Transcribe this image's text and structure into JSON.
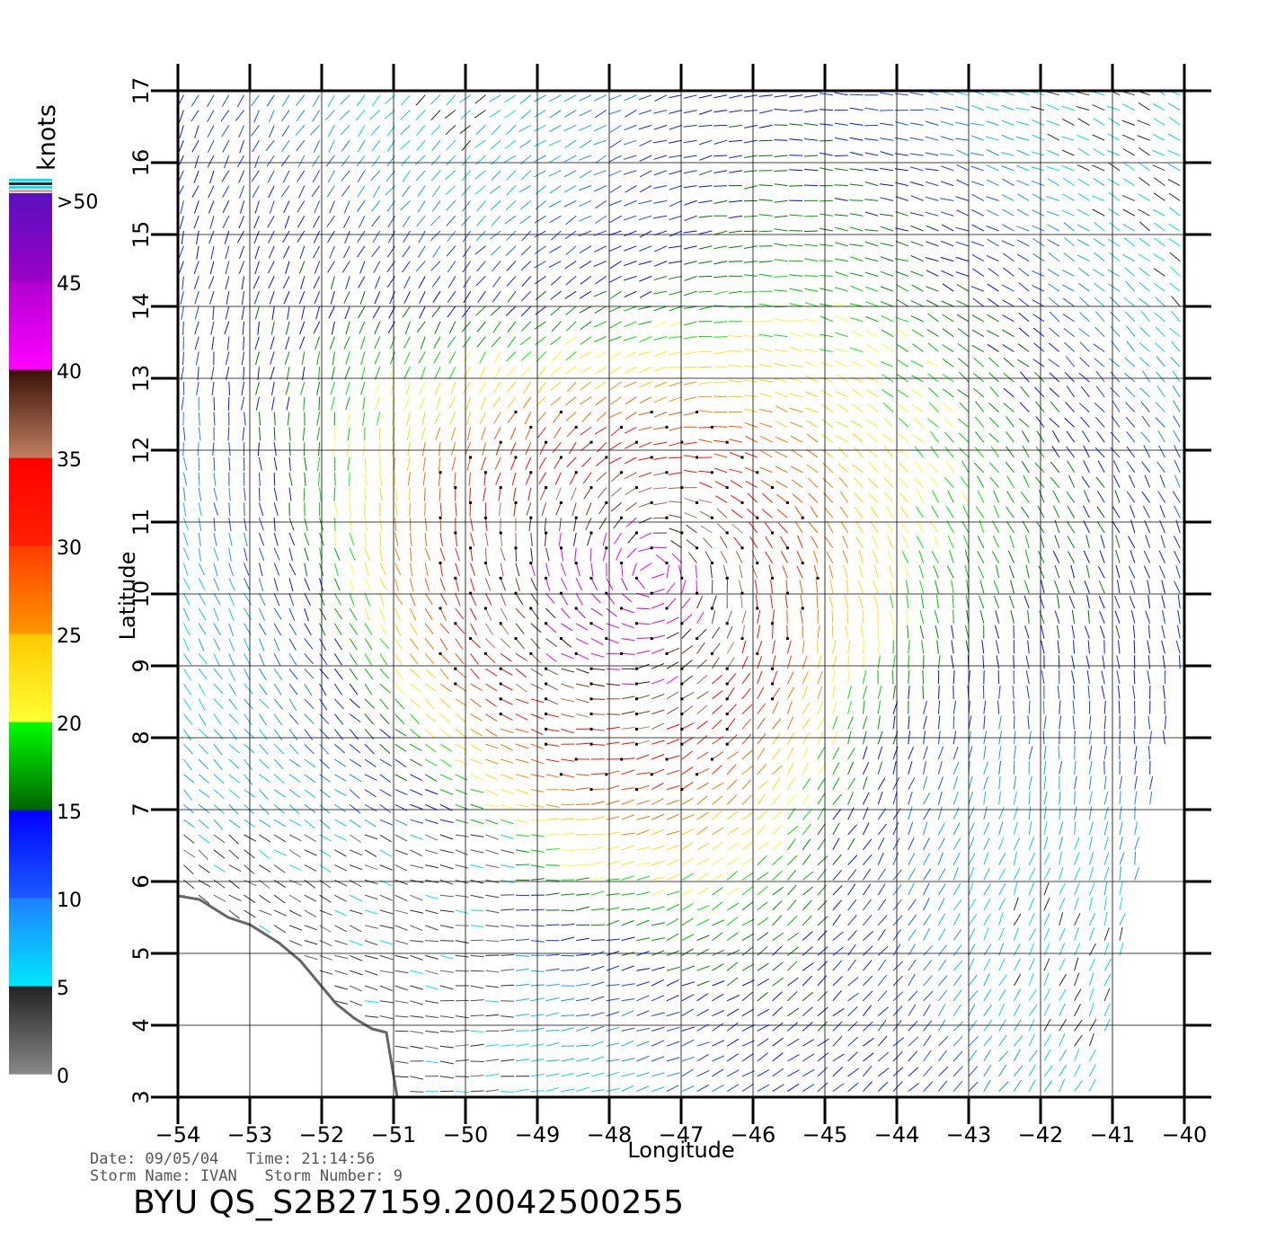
{
  "chart_data": {
    "type": "scatter",
    "title": "BYU QS_S2B27159.20042500255",
    "xlabel": "Longitude",
    "ylabel": "Latitude",
    "xlim": [
      -54,
      -40
    ],
    "ylim": [
      3,
      17
    ],
    "x_ticks": [
      "-54",
      "-53",
      "-52",
      "-51",
      "-50",
      "-49",
      "-48",
      "-47",
      "-46",
      "-45",
      "-44",
      "-43",
      "-42",
      "-41",
      "-40"
    ],
    "y_ticks": [
      "3",
      "4",
      "5",
      "6",
      "7",
      "8",
      "9",
      "10",
      "11",
      "12",
      "13",
      "14",
      "15",
      "16",
      "17"
    ],
    "grid": true,
    "colorbar": {
      "label": "knots",
      "ticks": [
        "0",
        "5",
        "10",
        "15",
        "20",
        "25",
        "30",
        "35",
        "40",
        "45",
        ">50"
      ],
      "bands": [
        {
          "from": 0,
          "to": 5,
          "colors": [
            "#888888",
            "#222222"
          ]
        },
        {
          "from": 5,
          "to": 10,
          "colors": [
            "#00e8ff",
            "#1e80ff"
          ]
        },
        {
          "from": 10,
          "to": 15,
          "colors": [
            "#1a5cff",
            "#0000ff"
          ]
        },
        {
          "from": 15,
          "to": 20,
          "colors": [
            "#006400",
            "#00ff00"
          ]
        },
        {
          "from": 20,
          "to": 25,
          "colors": [
            "#ffff33",
            "#ffc800"
          ]
        },
        {
          "from": 25,
          "to": 30,
          "colors": [
            "#ff9600",
            "#ff3c00"
          ]
        },
        {
          "from": 30,
          "to": 35,
          "colors": [
            "#ff2000",
            "#ff0000"
          ]
        },
        {
          "from": 35,
          "to": 40,
          "colors": [
            "#c08060",
            "#3a1008"
          ]
        },
        {
          "from": 40,
          "to": 45,
          "colors": [
            "#ff00ff",
            "#b000d0"
          ]
        },
        {
          "from": 45,
          "to": 50,
          "colors": [
            "#9a00c8",
            "#5a10c0"
          ]
        }
      ]
    },
    "storm_center": {
      "lon": -47.4,
      "lat": 10.3
    },
    "swath_east_edge": [
      [
        -39.9,
        9.6
      ],
      [
        -41.3,
        3.0
      ]
    ],
    "coastline": [
      [
        -54.0,
        5.8
      ],
      [
        -53.7,
        5.75
      ],
      [
        -53.3,
        5.5
      ],
      [
        -53.0,
        5.4
      ],
      [
        -52.6,
        5.15
      ],
      [
        -52.3,
        4.9
      ],
      [
        -52.05,
        4.6
      ],
      [
        -51.8,
        4.3
      ],
      [
        -51.55,
        4.1
      ],
      [
        -51.3,
        3.95
      ],
      [
        -51.1,
        3.9
      ],
      [
        -51.05,
        3.6
      ],
      [
        -51.0,
        3.3
      ],
      [
        -50.95,
        3.0
      ]
    ],
    "palette": {
      "frame": "#000000",
      "land": "#666666",
      "no_data": "#ffffff"
    }
  },
  "info": {
    "date_line": "Date: 09/05/04   Time: 21:14:56",
    "storm_line": "Storm Name: IVAN   Storm Number: 9"
  }
}
